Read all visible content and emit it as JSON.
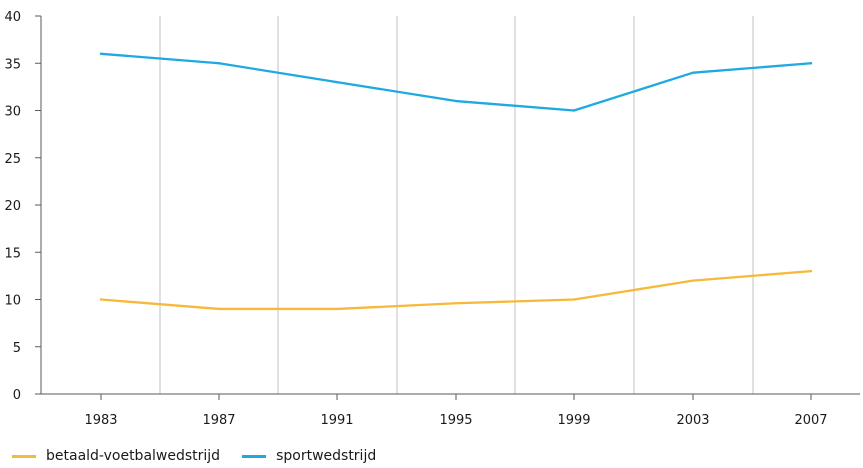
{
  "chart_data": {
    "type": "line",
    "title": "",
    "xlabel": "",
    "ylabel": "",
    "x": [
      "1983",
      "1987",
      "1991",
      "1995",
      "1999",
      "2003",
      "2007"
    ],
    "ylim": [
      0,
      40
    ],
    "yticks": [
      "0",
      "5",
      "10",
      "15",
      "20",
      "25",
      "30",
      "35",
      "40"
    ],
    "grid": "vertical",
    "legend_position": "bottom-left",
    "series": [
      {
        "name": "betaald-voetbalwedstrijd",
        "color": "#f6b93b",
        "values": [
          10,
          9,
          9,
          9.6,
          10,
          12,
          13
        ]
      },
      {
        "name": "sportwedstrijd",
        "color": "#1fa9e1",
        "values": [
          36,
          35,
          33,
          31,
          30,
          34,
          35
        ]
      }
    ]
  }
}
